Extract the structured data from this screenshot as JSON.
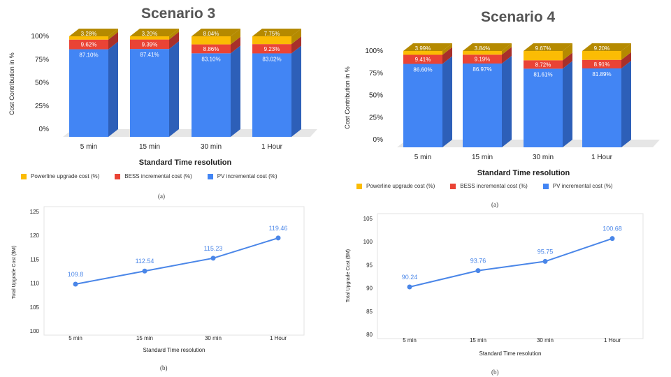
{
  "titles": {
    "left": "Scenario 3",
    "right": "Scenario 4"
  },
  "panel_labels": {
    "a": "(a)",
    "b": "(b)"
  },
  "colors": {
    "pv": "#4285f4",
    "pv_dark": "#2d5fb8",
    "bess": "#ea4335",
    "bess_dark": "#a8302a",
    "powerline": "#fbbc04",
    "powerline_dark": "#b58a00",
    "line": "#4a86e8",
    "floor": "#e6e6e6"
  },
  "chart_data": [
    {
      "id": "s3a",
      "type": "bar",
      "stacked": true,
      "categories": [
        "5 min",
        "15 min",
        "30 min",
        "1 Hour"
      ],
      "series": [
        {
          "name": "PV incremental cost (%)",
          "values": [
            87.1,
            87.41,
            83.1,
            83.02
          ],
          "labels": [
            "87.10%",
            "87.41%",
            "83.10%",
            "83.02%"
          ]
        },
        {
          "name": "BESS incremental cost (%)",
          "values": [
            9.62,
            9.39,
            8.86,
            9.23
          ],
          "labels": [
            "9.62%",
            "9.39%",
            "8.86%",
            "9.23%"
          ]
        },
        {
          "name": "Powerline upgrade cost (%)",
          "values": [
            3.28,
            3.2,
            8.04,
            7.75
          ],
          "labels": [
            "3.28%",
            "3.20%",
            "8.04%",
            "7.75%"
          ]
        }
      ],
      "yticks": [
        "100%",
        "75%",
        "50%",
        "25%",
        "0%"
      ],
      "ylim": [
        0,
        100
      ],
      "xlabel": "Standard Time resolution",
      "ylabel": "Cost Contribution in %",
      "legend": [
        "Powerline upgrade cost (%)",
        "BESS incremental cost (%)",
        "PV incremental cost (%)"
      ]
    },
    {
      "id": "s4a",
      "type": "bar",
      "stacked": true,
      "categories": [
        "5 min",
        "15 min",
        "30 min",
        "1 Hour"
      ],
      "series": [
        {
          "name": "PV incremental cost (%)",
          "values": [
            86.6,
            86.97,
            81.61,
            81.89
          ],
          "labels": [
            "86.60%",
            "86.97%",
            "81.61%",
            "81.89%"
          ]
        },
        {
          "name": "BESS incremental cost (%)",
          "values": [
            9.41,
            9.19,
            8.72,
            8.91
          ],
          "labels": [
            "9.41%",
            "9.19%",
            "8.72%",
            "8.91%"
          ]
        },
        {
          "name": "Powerline upgrade cost (%)",
          "values": [
            3.99,
            3.84,
            9.67,
            9.2
          ],
          "labels": [
            "3.99%",
            "3.84%",
            "9.67%",
            "9.20%"
          ]
        }
      ],
      "yticks": [
        "100%",
        "75%",
        "50%",
        "25%",
        "0%"
      ],
      "ylim": [
        0,
        100
      ],
      "xlabel": "Standard Time resolution",
      "ylabel": "Cost Contribution in %",
      "legend": [
        "Powerline upgrade cost (%)",
        "BESS incremental cost (%)",
        "PV incremental cost (%)"
      ]
    },
    {
      "id": "s3b",
      "type": "line",
      "categories": [
        "5 min",
        "15 min",
        "30 min",
        "1 Hour"
      ],
      "values": [
        109.8,
        112.54,
        115.23,
        119.46
      ],
      "labels": [
        "109.8",
        "112.54",
        "115.23",
        "119.46"
      ],
      "yticks": [
        125,
        120,
        115,
        110,
        105,
        100
      ],
      "ylim": [
        100,
        125
      ],
      "xlabel": "Standard Time resolution",
      "ylabel": "Total Upgrade Cost ($M)"
    },
    {
      "id": "s4b",
      "type": "line",
      "categories": [
        "5 min",
        "15 min",
        "30 min",
        "1 Hour"
      ],
      "values": [
        90.24,
        93.76,
        95.75,
        100.68
      ],
      "labels": [
        "90.24",
        "93.76",
        "95.75",
        "100.68"
      ],
      "yticks": [
        105,
        100,
        95,
        90,
        85,
        80
      ],
      "ylim": [
        80,
        105
      ],
      "xlabel": "Standard Time resolution",
      "ylabel": "Total Upgrade Cost ($M)"
    }
  ]
}
